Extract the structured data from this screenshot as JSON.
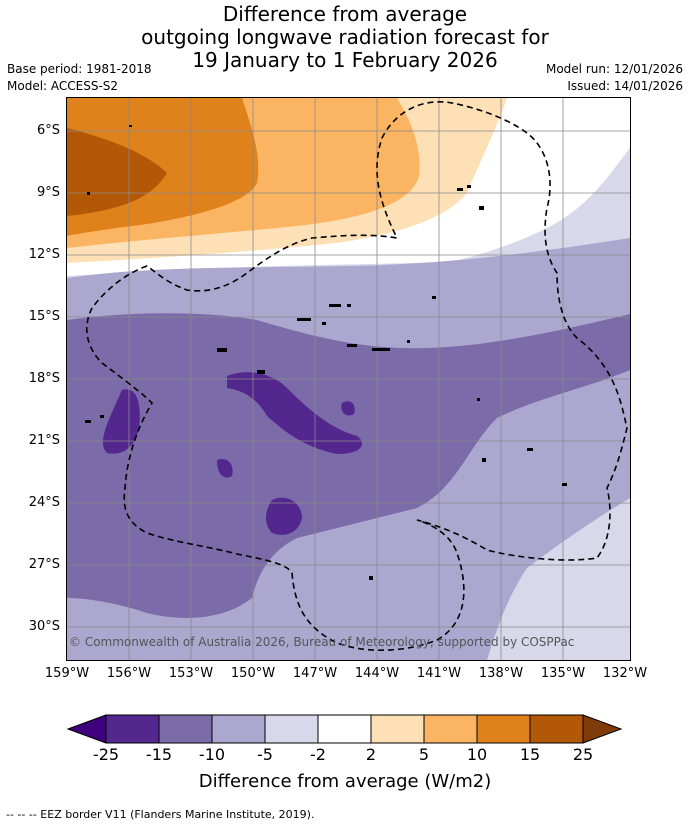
{
  "title": {
    "line1": "Difference from average",
    "line2": "outgoing longwave radiation forecast for",
    "line3": "19 January to 1 February 2026"
  },
  "meta": {
    "base_period": "Base period: 1981-2018",
    "model": "Model: ACCESS-S2",
    "model_run": "Model run: 12/01/2026",
    "issued": "Issued: 14/01/2026"
  },
  "map": {
    "lat_labels": [
      "6°S",
      "9°S",
      "12°S",
      "15°S",
      "18°S",
      "21°S",
      "24°S",
      "27°S",
      "30°S"
    ],
    "lon_labels": [
      "159°W",
      "156°W",
      "153°W",
      "150°W",
      "147°W",
      "144°W",
      "141°W",
      "138°W",
      "135°W",
      "132°W"
    ],
    "copyright": "© Commonwealth of Australia 2026, Bureau of Meteorology, supported by COSPPac"
  },
  "colorbar": {
    "ticks": [
      "-25",
      "-15",
      "-10",
      "-5",
      "-2",
      "2",
      "5",
      "10",
      "15",
      "25"
    ],
    "colors": [
      "#3f007d",
      "#54278f",
      "#7b6ba8",
      "#aca7cf",
      "#d9d8ea",
      "#ffffff",
      "#fde0b6",
      "#fbb562",
      "#e0821b",
      "#b35806",
      "#7f3b08"
    ],
    "label": "Difference from average (W/m2)"
  },
  "footer": "--  --  -- EEZ border V11 (Flanders Marine Institute, 2019)."
}
